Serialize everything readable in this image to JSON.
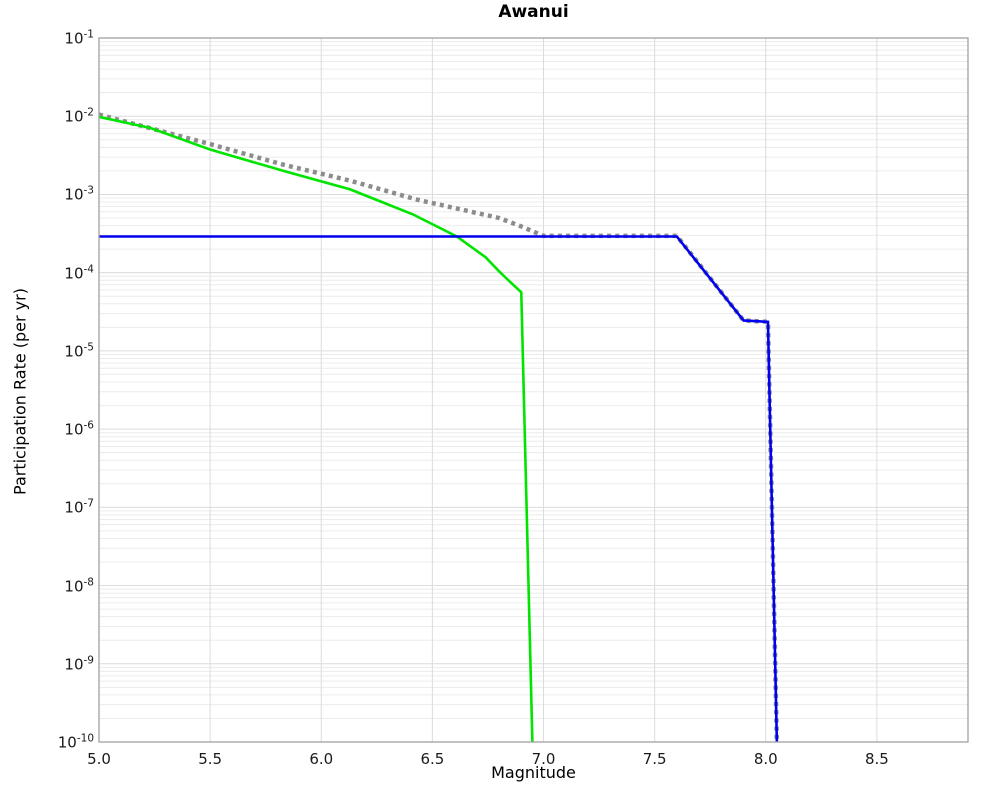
{
  "chart_data": {
    "type": "line",
    "title": "Awanui",
    "xlabel": "Magnitude",
    "ylabel": "Participation Rate (per yr)",
    "x_scale": "linear",
    "y_scale": "log",
    "xlim": [
      5.0,
      8.91
    ],
    "ylim": [
      1e-10,
      0.1
    ],
    "xticks": [
      5.0,
      5.5,
      6.0,
      6.5,
      7.0,
      7.5,
      8.0,
      8.5
    ],
    "ytick_exponents": [
      -1,
      -2,
      -3,
      -4,
      -5,
      -6,
      -7,
      -8,
      -9,
      -10
    ],
    "grid": "major-and-minor",
    "legend": "none",
    "colors": {
      "minor_grid": "#ececec",
      "major_grid": "#dcdcdc",
      "spine": "#a0a0a0",
      "dotted_series": "#8c8c8c",
      "green_series": "#00e400",
      "blue_series": "#0000ee"
    },
    "series": [
      {
        "name": "total-mfd-dotted-gray",
        "style": "dotted",
        "color": "#8c8c8c",
        "width": 4.5,
        "points": [
          [
            5.0,
            0.0105
          ],
          [
            5.5,
            0.0044
          ],
          [
            5.83,
            0.0024
          ],
          [
            6.13,
            0.0015
          ],
          [
            6.43,
            0.00086
          ],
          [
            6.8,
            0.0005
          ],
          [
            6.9,
            0.00039
          ],
          [
            7.0,
            0.000295
          ],
          [
            7.6,
            0.000295
          ],
          [
            7.9,
            2.45e-05
          ],
          [
            8.01,
            2.35e-05
          ],
          [
            8.05,
            1e-10
          ]
        ]
      },
      {
        "name": "sub-seismogenic-green",
        "style": "solid",
        "color": "#00e400",
        "width": 2.6,
        "points": [
          [
            5.0,
            0.0098
          ],
          [
            5.23,
            0.0071
          ],
          [
            5.5,
            0.00375
          ],
          [
            5.83,
            0.002
          ],
          [
            6.13,
            0.00116
          ],
          [
            6.41,
            0.00056
          ],
          [
            6.61,
            0.00029
          ],
          [
            6.74,
            0.000157
          ],
          [
            6.8,
            0.000104
          ],
          [
            6.85,
            7.6e-05
          ],
          [
            6.9,
            5.6e-05
          ],
          [
            6.95,
            1e-10
          ]
        ]
      },
      {
        "name": "supra-seismogenic-blue",
        "style": "solid",
        "color": "#0000ee",
        "width": 2.6,
        "points": [
          [
            5.0,
            0.00029
          ],
          [
            7.6,
            0.00029
          ],
          [
            7.9,
            2.45e-05
          ],
          [
            8.01,
            2.35e-05
          ],
          [
            8.05,
            1e-10
          ]
        ]
      }
    ]
  }
}
